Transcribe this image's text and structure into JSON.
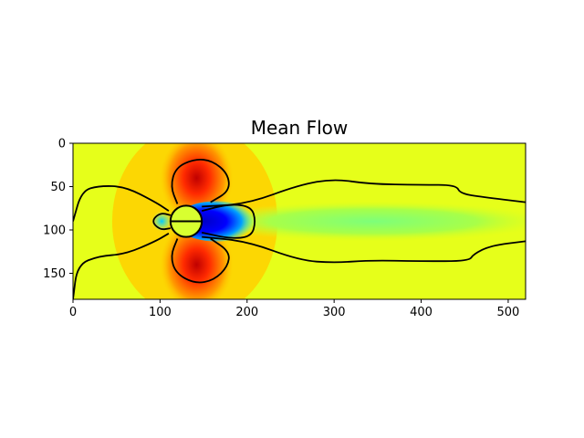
{
  "chart_data": {
    "type": "heatmap",
    "title": "Mean Flow",
    "xlabel": "",
    "ylabel": "",
    "xlim": [
      0,
      520
    ],
    "ylim": [
      180,
      0
    ],
    "x_ticks": [
      0,
      100,
      200,
      300,
      400,
      500
    ],
    "y_ticks": [
      0,
      50,
      100,
      150
    ],
    "colormap": "jet",
    "cylinder": {
      "center": [
        130,
        90
      ],
      "radius": 18
    },
    "contour_lines": [
      {
        "name": "upper-outer",
        "points": [
          [
            0,
            90
          ],
          [
            10,
            55
          ],
          [
            30,
            49
          ],
          [
            60,
            50
          ],
          [
            95,
            68
          ],
          [
            110,
            78
          ]
        ]
      },
      {
        "name": "lower-outer",
        "points": [
          [
            0,
            180
          ],
          [
            5,
            140
          ],
          [
            30,
            130
          ],
          [
            60,
            128
          ],
          [
            95,
            113
          ],
          [
            110,
            104
          ]
        ]
      },
      {
        "name": "wake-upper",
        "points": [
          [
            148,
            73
          ],
          [
            200,
            70
          ],
          [
            260,
            48
          ],
          [
            300,
            41
          ],
          [
            340,
            47
          ],
          [
            400,
            48
          ],
          [
            440,
            48
          ],
          [
            445,
            58
          ],
          [
            470,
            62
          ],
          [
            520,
            68
          ]
        ]
      },
      {
        "name": "wake-lower",
        "points": [
          [
            148,
            108
          ],
          [
            200,
            113
          ],
          [
            260,
            135
          ],
          [
            300,
            138
          ],
          [
            340,
            135
          ],
          [
            400,
            136
          ],
          [
            455,
            136
          ],
          [
            460,
            128
          ],
          [
            480,
            118
          ],
          [
            520,
            113
          ]
        ]
      },
      {
        "name": "upper-lobe",
        "points": [
          [
            120,
            70
          ],
          [
            112,
            50
          ],
          [
            118,
            28
          ],
          [
            140,
            18
          ],
          [
            160,
            20
          ],
          [
            178,
            35
          ],
          [
            180,
            55
          ],
          [
            158,
            68
          ]
        ]
      },
      {
        "name": "lower-lobe",
        "points": [
          [
            120,
            110
          ],
          [
            112,
            130
          ],
          [
            118,
            150
          ],
          [
            140,
            162
          ],
          [
            162,
            158
          ],
          [
            178,
            142
          ],
          [
            180,
            125
          ],
          [
            158,
            110
          ]
        ]
      },
      {
        "name": "upstream-bubble",
        "points": [
          [
            112,
            83
          ],
          [
            100,
            80
          ],
          [
            90,
            90
          ],
          [
            100,
            100
          ],
          [
            112,
            98
          ]
        ]
      },
      {
        "name": "wake-bubble",
        "points": [
          [
            148,
            78
          ],
          [
            180,
            70
          ],
          [
            205,
            73
          ],
          [
            210,
            90
          ],
          [
            205,
            108
          ],
          [
            180,
            110
          ],
          [
            148,
            103
          ]
        ]
      }
    ]
  }
}
